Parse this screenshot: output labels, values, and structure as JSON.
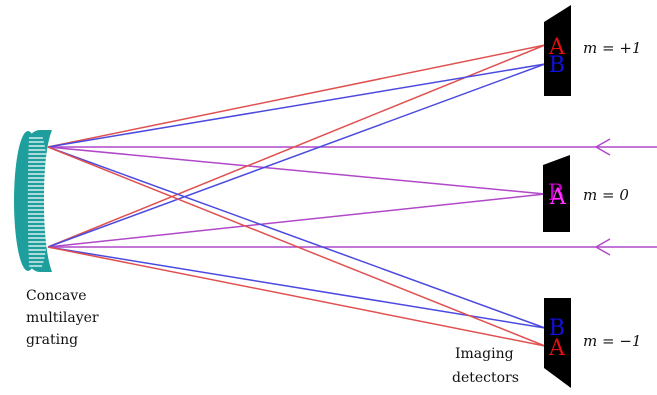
{
  "grating": {
    "caption_lines": [
      "Concave",
      "multilayer",
      "grating"
    ],
    "fill_color": "#1f9e9e",
    "stripe_color": "#ffffff"
  },
  "detectors": {
    "caption_lines": [
      "Imaging",
      "detectors"
    ],
    "body_color": "#000000",
    "items": [
      {
        "order_label": "m = +1",
        "letters": [
          {
            "text": "A",
            "color": "#e01010"
          },
          {
            "text": "B",
            "color": "#1010e0"
          }
        ]
      },
      {
        "order_label": "m = 0",
        "letters": [
          {
            "text": "B",
            "color": "#cc00cc"
          },
          {
            "text": "A",
            "color": "#ff33ff"
          }
        ]
      },
      {
        "order_label": "m = −1",
        "letters": [
          {
            "text": "B",
            "color": "#1010e0"
          },
          {
            "text": "A",
            "color": "#e01010"
          }
        ]
      }
    ]
  },
  "rays": {
    "incident_color": "#b048c8",
    "red_color": "#e05050",
    "blue_color": "#4a4ae0"
  }
}
